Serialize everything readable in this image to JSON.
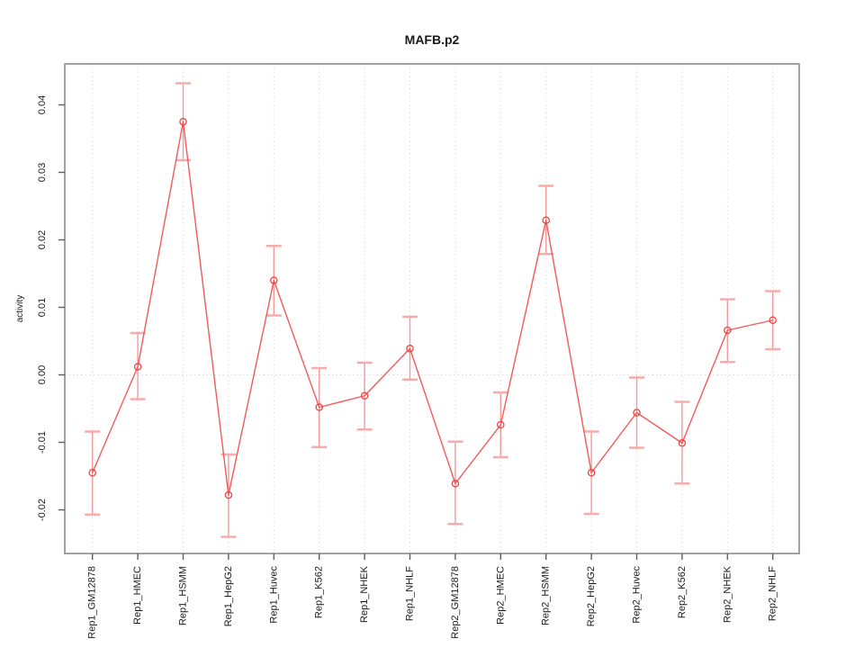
{
  "window": {
    "title": "MAFB.p2 activity plot"
  },
  "chart_data": {
    "type": "line",
    "title": "MAFB.p2",
    "xlabel": "",
    "ylabel": "activity",
    "legend_position": "none",
    "grid": {
      "vertical_dotted_at_each_category": true,
      "horizontal_dotted_at_zero": true
    },
    "categories": [
      "Rep1_GM12878",
      "Rep1_HMEC",
      "Rep1_HSMM",
      "Rep1_HepG2",
      "Rep1_Huvec",
      "Rep1_K562",
      "Rep1_NHEK",
      "Rep1_NHLF",
      "Rep2_GM12878",
      "Rep2_HMEC",
      "Rep2_HSMM",
      "Rep2_HepG2",
      "Rep2_Huvec",
      "Rep2_K562",
      "Rep2_NHEK",
      "Rep2_NHLF"
    ],
    "series": [
      {
        "name": "activity",
        "values": [
          -0.0145,
          0.0012,
          0.0375,
          -0.0178,
          0.014,
          -0.0048,
          -0.0031,
          0.0039,
          -0.0161,
          -0.0074,
          0.0229,
          -0.0145,
          -0.0056,
          -0.0101,
          0.0066,
          0.0081
        ],
        "upper": [
          -0.0084,
          0.0062,
          0.0432,
          -0.0118,
          0.0191,
          0.001,
          0.0018,
          0.0086,
          -0.0099,
          -0.0026,
          0.028,
          -0.0084,
          -0.0004,
          -0.004,
          0.0112,
          0.0124
        ],
        "lower": [
          -0.0207,
          -0.0036,
          0.0318,
          -0.024,
          0.0088,
          -0.0107,
          -0.0081,
          -0.0007,
          -0.0221,
          -0.0122,
          0.0179,
          -0.0206,
          -0.0108,
          -0.0161,
          0.0019,
          0.0038
        ]
      }
    ],
    "yticks": [
      -0.02,
      -0.01,
      0.0,
      0.01,
      0.02,
      0.03,
      0.04
    ],
    "ylim": [
      -0.0265,
      0.0461
    ],
    "colors": {
      "series_line": "#f25b5b",
      "point_stroke": "#ea4444",
      "error_line": "#f49a9a",
      "error_cap": "#f8abab",
      "grid_line": "#dedede",
      "zero_line": "#d9d9d9",
      "frame": "#8a8a8a",
      "tick_mark": "#5f5f5f",
      "text": "#1a1a1a"
    }
  }
}
